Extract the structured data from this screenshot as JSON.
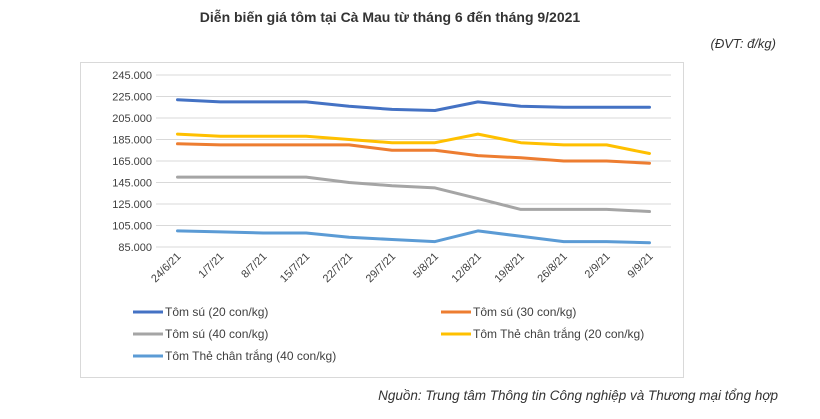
{
  "title": "Diễn biến giá tôm tại Cà Mau từ tháng 6 đến tháng 9/2021",
  "unit": "(ĐVT: đ/kg)",
  "source": "Nguồn: Trung tâm Thông tin Công nghiệp và Thương mại tổng hợp",
  "chart_data": {
    "type": "line",
    "title": "Diễn biến giá tôm tại Cà Mau từ tháng 6 đến tháng 9/2021",
    "xlabel": "",
    "ylabel": "",
    "categories": [
      "24/6/21",
      "1/7/21",
      "8/7/21",
      "15/7/21",
      "22/7/21",
      "29/7/21",
      "5/8/21",
      "12/8/21",
      "19/8/21",
      "26/8/21",
      "2/9/21",
      "9/9/21"
    ],
    "ylim": [
      85000,
      245000
    ],
    "yticks": [
      {
        "value": 85000,
        "label": "85.000"
      },
      {
        "value": 105000,
        "label": "105.000"
      },
      {
        "value": 125000,
        "label": "125.000"
      },
      {
        "value": 145000,
        "label": "145.000"
      },
      {
        "value": 165000,
        "label": "165.000"
      },
      {
        "value": 185000,
        "label": "185.000"
      },
      {
        "value": 205000,
        "label": "205.000"
      },
      {
        "value": 225000,
        "label": "225.000"
      },
      {
        "value": 245000,
        "label": "245.000"
      }
    ],
    "grid": true,
    "legend_position": "bottom",
    "series": [
      {
        "name": "Tôm sú (20 con/kg)",
        "color": "#4472c4",
        "values": [
          222000,
          220000,
          220000,
          220000,
          216000,
          213000,
          212000,
          220000,
          216000,
          215000,
          215000,
          215000
        ]
      },
      {
        "name": "Tôm sú (30 con/kg)",
        "color": "#ed7d31",
        "values": [
          181000,
          180000,
          180000,
          180000,
          180000,
          175000,
          175000,
          170000,
          168000,
          165000,
          165000,
          163000
        ]
      },
      {
        "name": "Tôm sú (40 con/kg)",
        "color": "#a5a5a5",
        "values": [
          150000,
          150000,
          150000,
          150000,
          145000,
          142000,
          140000,
          130000,
          120000,
          120000,
          120000,
          118000
        ]
      },
      {
        "name": "Tôm Thẻ chân trắng (20 con/kg)",
        "color": "#ffc000",
        "values": [
          190000,
          188000,
          188000,
          188000,
          185000,
          182000,
          182000,
          190000,
          182000,
          180000,
          180000,
          172000
        ]
      },
      {
        "name": "Tôm Thẻ chân trắng (40 con/kg)",
        "color": "#5b9bd5",
        "values": [
          100000,
          99000,
          98000,
          98000,
          94000,
          92000,
          90000,
          100000,
          95000,
          90000,
          90000,
          89000
        ]
      }
    ]
  }
}
